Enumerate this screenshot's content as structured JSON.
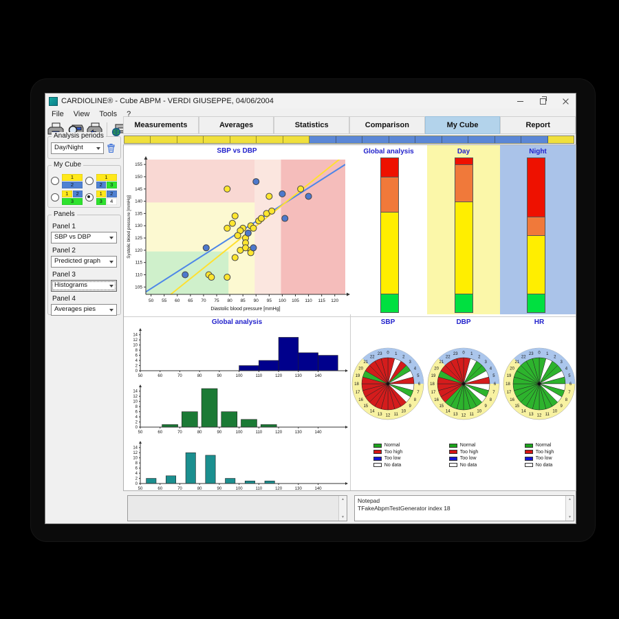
{
  "window": {
    "title": "CARDIOLINE® - Cube ABPM - VERDI GIUSEPPE, 04/06/2004",
    "menu": [
      "File",
      "View",
      "Tools",
      "?"
    ]
  },
  "toolbar": {
    "buttons": [
      "print",
      "print-preview",
      "print-settings",
      "export"
    ]
  },
  "tabs": {
    "items": [
      {
        "label": "Measurements",
        "active": false
      },
      {
        "label": "Averages",
        "active": false
      },
      {
        "label": "Statistics",
        "active": false
      },
      {
        "label": "Comparison",
        "active": false
      },
      {
        "label": "My Cube",
        "active": true
      },
      {
        "label": "Report",
        "active": false
      }
    ]
  },
  "timeline": {
    "colors": {
      "y": "#f0e03c",
      "b": "#5b87d6"
    },
    "segments": [
      "y",
      "y",
      "y",
      "y",
      "y",
      "y",
      "y",
      "b",
      "b",
      "b",
      "b",
      "b",
      "b",
      "b",
      "b",
      "b",
      "y"
    ]
  },
  "sidebar": {
    "analysis_periods": {
      "label": "Analysis periods",
      "value": "Day/Night"
    },
    "my_cube": {
      "label": "My Cube",
      "colors": {
        "y": "#ffe81a",
        "b": "#4f81d2",
        "g": "#2ee22e",
        "w": "#ffffff"
      },
      "options": [
        {
          "selected": false,
          "rows": [
            [
              {
                "t": "1",
                "c": "y"
              }
            ],
            [
              {
                "t": "2",
                "c": "b"
              }
            ]
          ]
        },
        {
          "selected": false,
          "rows": [
            [
              {
                "t": "1",
                "c": "y"
              }
            ],
            [
              {
                "t": "2",
                "c": "b"
              },
              {
                "t": "3",
                "c": "g"
              }
            ]
          ]
        },
        {
          "selected": false,
          "rows": [
            [
              {
                "t": "1",
                "c": "y"
              },
              {
                "t": "2",
                "c": "b"
              }
            ],
            [
              {
                "t": "3",
                "c": "g"
              }
            ]
          ]
        },
        {
          "selected": true,
          "rows": [
            [
              {
                "t": "1",
                "c": "y"
              },
              {
                "t": "2",
                "c": "b"
              }
            ],
            [
              {
                "t": "3",
                "c": "g"
              },
              {
                "t": "4",
                "c": "w"
              }
            ]
          ]
        }
      ]
    },
    "panels": {
      "label": "Panels",
      "items": [
        {
          "label": "Panel 1",
          "value": "SBP vs DBP",
          "focused": false
        },
        {
          "label": "Panel 2",
          "value": "Predicted graph",
          "focused": false
        },
        {
          "label": "Panel 3",
          "value": "Histograms",
          "focused": true
        },
        {
          "label": "Panel 4",
          "value": "Averages pies",
          "focused": false
        }
      ]
    }
  },
  "notepad": {
    "left_text": "",
    "right_lines": [
      "Notepad",
      "TFakeAbpmTestGenerator index 18"
    ]
  },
  "chart_data": [
    {
      "type": "scatter",
      "title": "SBP vs DBP",
      "xlabel": "Diastolic blood pressure [mmHg]",
      "ylabel": "Systolic blood pressure [mmHg]",
      "xlim": [
        48,
        124
      ],
      "ylim": [
        102,
        157
      ],
      "xticks": [
        50,
        55,
        60,
        65,
        70,
        75,
        80,
        85,
        90,
        95,
        100,
        105,
        110,
        115,
        120
      ],
      "yticks": [
        105,
        110,
        115,
        120,
        125,
        130,
        135,
        140,
        145,
        150,
        155
      ],
      "regions": [
        {
          "x": [
            48,
            89.5
          ],
          "y": [
            102,
            157
          ],
          "color": "#f9d8d3"
        },
        {
          "x": [
            89.5,
            99.5
          ],
          "y": [
            102,
            157
          ],
          "color": "#fbe6df"
        },
        {
          "x": [
            99.5,
            124
          ],
          "y": [
            102,
            157
          ],
          "color": "#f5bdbb"
        },
        {
          "x": [
            48,
            89.5
          ],
          "y": [
            102,
            139.5
          ],
          "color": "#fcf9d1"
        },
        {
          "x": [
            48,
            79.5
          ],
          "y": [
            102,
            119.5
          ],
          "color": "#cff0cb"
        }
      ],
      "trend_lines": [
        {
          "name": "night-trend",
          "color": "#4d86e8",
          "x": [
            48,
            124
          ],
          "y": [
            103,
            155
          ]
        },
        {
          "name": "day-trend",
          "color": "#ffe030",
          "x": [
            54,
            124
          ],
          "y": [
            99,
            159
          ]
        }
      ],
      "series": [
        {
          "name": "Day",
          "color": "#ffe62e",
          "points": [
            [
              79,
              145
            ],
            [
              95,
              142
            ],
            [
              107,
              145
            ],
            [
              82,
              134
            ],
            [
              81,
              131
            ],
            [
              79,
              129
            ],
            [
              85,
              129
            ],
            [
              88,
              130
            ],
            [
              89,
              129
            ],
            [
              91,
              132
            ],
            [
              92,
              133
            ],
            [
              94,
              135
            ],
            [
              96,
              136
            ],
            [
              84,
              128
            ],
            [
              83,
              126
            ],
            [
              86,
              125
            ],
            [
              86,
              123
            ],
            [
              84,
              120
            ],
            [
              86,
              121
            ],
            [
              88,
              120
            ],
            [
              88,
              119
            ],
            [
              82,
              117
            ],
            [
              72,
              110
            ],
            [
              73,
              109
            ],
            [
              79,
              109
            ]
          ]
        },
        {
          "name": "Night",
          "color": "#4d79cc",
          "points": [
            [
              90,
              148
            ],
            [
              100,
              143
            ],
            [
              110,
              142
            ],
            [
              101,
              133
            ],
            [
              87,
              127
            ],
            [
              89,
              121
            ],
            [
              71,
              121
            ],
            [
              63,
              110
            ]
          ]
        }
      ]
    },
    {
      "type": "bar",
      "subtype": "stacked-columns",
      "columns": [
        {
          "label": "Global analysis",
          "bg": "#ffffff",
          "segments": [
            {
              "color": "#ee1100",
              "pct": 12
            },
            {
              "color": "#f0793a",
              "pct": 23
            },
            {
              "color": "#ffee00",
              "pct": 53
            },
            {
              "color": "#00e040",
              "pct": 12
            }
          ]
        },
        {
          "label": "Day",
          "bg": "#fbf7a9",
          "segments": [
            {
              "color": "#ee1100",
              "pct": 4
            },
            {
              "color": "#f0793a",
              "pct": 24
            },
            {
              "color": "#ffee00",
              "pct": 60
            },
            {
              "color": "#00e040",
              "pct": 12
            }
          ]
        },
        {
          "label": "Night",
          "bg": "#aac3e9",
          "segments": [
            {
              "color": "#ee1100",
              "pct": 38
            },
            {
              "color": "#f0793a",
              "pct": 12
            },
            {
              "color": "#ffee00",
              "pct": 38
            },
            {
              "color": "#00e040",
              "pct": 12
            }
          ]
        }
      ]
    },
    {
      "type": "bar",
      "subtype": "histograms",
      "title": "Global analysis",
      "xlim": [
        50,
        152
      ],
      "ylim": [
        0,
        15
      ],
      "yticks": [
        0,
        2,
        4,
        6,
        8,
        10,
        12,
        14
      ],
      "xticks": [
        50,
        60,
        70,
        80,
        90,
        100,
        110,
        120,
        130,
        140
      ],
      "charts": [
        {
          "name": "SBP",
          "color": "#00008c",
          "bars": [
            [
              100,
              110,
              2
            ],
            [
              110,
              120,
              4
            ],
            [
              120,
              130,
              13
            ],
            [
              130,
              140,
              7
            ],
            [
              140,
              150,
              6
            ]
          ]
        },
        {
          "name": "DBP",
          "color": "#1b7a35",
          "bars": [
            [
              61,
              69,
              1
            ],
            [
              71,
              79,
              6
            ],
            [
              81,
              89,
              15
            ],
            [
              91,
              99,
              6
            ],
            [
              101,
              109,
              3
            ],
            [
              111,
              119,
              1
            ]
          ]
        },
        {
          "name": "HR",
          "color": "#1b8f8f",
          "bars": [
            [
              53,
              58,
              2
            ],
            [
              63,
              68,
              3
            ],
            [
              73,
              78,
              12
            ],
            [
              83,
              88,
              11
            ],
            [
              93,
              98,
              2
            ],
            [
              103,
              108,
              1
            ],
            [
              113,
              118,
              1
            ]
          ]
        }
      ]
    },
    {
      "type": "pie",
      "subtype": "clock-pies",
      "hour_colors": {
        "g": "#2db32d",
        "r": "#d41c1c",
        "w": "#ffffff",
        "b": "#1414d4"
      },
      "ring": {
        "day_color": "#f8f2a2",
        "night_color": "#abc6ec",
        "night_from": 21,
        "night_to": 6
      },
      "pies": [
        {
          "label": "SBP",
          "hours": "rwrgwrwgwrrrrrrrrrrgrrrr"
        },
        {
          "label": "DBP",
          "hours": "rwggwrwgwggggggrrrrgrrrr"
        },
        {
          "label": "HR",
          "hours": "gwggwgwgwggggggggggggggg"
        }
      ],
      "legend": [
        {
          "label": "Normal",
          "color": "#1ca41c"
        },
        {
          "label": "Too high",
          "color": "#d41414"
        },
        {
          "label": "Too low",
          "color": "#1414d4"
        },
        {
          "label": "No data",
          "color": "#ffffff"
        }
      ]
    }
  ]
}
